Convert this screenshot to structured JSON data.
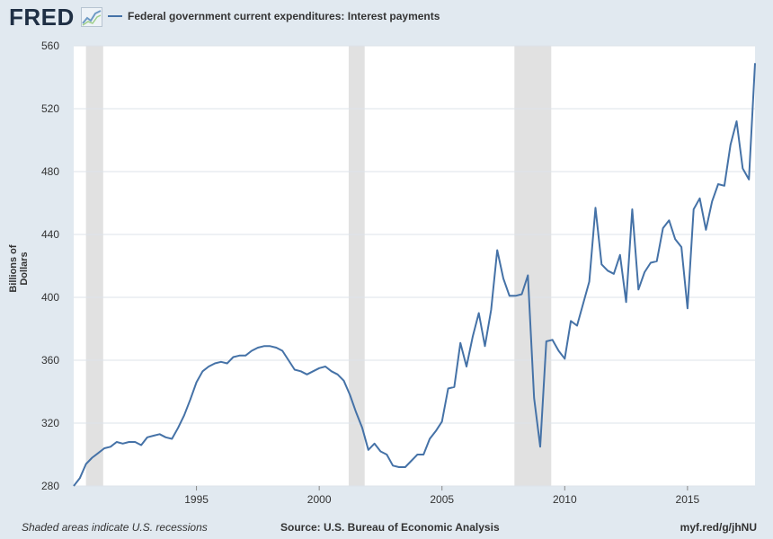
{
  "header": {
    "logo_text": "FRED",
    "logo_icon": "sparkline-chart-icon"
  },
  "footer": {
    "recession_note": "Shaded areas indicate U.S. recessions",
    "source": "Source: U.S. Bureau of Economic Analysis",
    "url": "myf.red/g/jhNU"
  },
  "colors": {
    "background": "#e1e9f0",
    "plot_background": "#ffffff",
    "series_line": "#4572a7",
    "recession_shade": "#e1e1e1",
    "grid": "#dde3ea"
  },
  "chart_data": {
    "type": "line",
    "ylabel": "Billions of Dollars",
    "xlabel": "",
    "ylim": [
      280,
      560
    ],
    "yticks": [
      280,
      320,
      360,
      400,
      440,
      480,
      520,
      560
    ],
    "xlim": [
      1990.0,
      2017.75
    ],
    "xticks": [
      1995,
      2000,
      2005,
      2010,
      2015
    ],
    "grid": "horizontal",
    "legend_position": "top-left",
    "recessions": [
      [
        1990.5,
        1991.2
      ],
      [
        2001.2,
        2001.85
      ],
      [
        2007.95,
        2009.45
      ]
    ],
    "series": [
      {
        "name": "Federal government current expenditures: Interest payments",
        "x": [
          1990.0,
          1990.25,
          1990.5,
          1990.75,
          1991.0,
          1991.25,
          1991.5,
          1991.75,
          1992.0,
          1992.25,
          1992.5,
          1992.75,
          1993.0,
          1993.25,
          1993.5,
          1993.75,
          1994.0,
          1994.25,
          1994.5,
          1994.75,
          1995.0,
          1995.25,
          1995.5,
          1995.75,
          1996.0,
          1996.25,
          1996.5,
          1996.75,
          1997.0,
          1997.25,
          1997.5,
          1997.75,
          1998.0,
          1998.25,
          1998.5,
          1998.75,
          1999.0,
          1999.25,
          1999.5,
          1999.75,
          2000.0,
          2000.25,
          2000.5,
          2000.75,
          2001.0,
          2001.25,
          2001.5,
          2001.75,
          2002.0,
          2002.25,
          2002.5,
          2002.75,
          2003.0,
          2003.25,
          2003.5,
          2003.75,
          2004.0,
          2004.25,
          2004.5,
          2004.75,
          2005.0,
          2005.25,
          2005.5,
          2005.75,
          2006.0,
          2006.25,
          2006.5,
          2006.75,
          2007.0,
          2007.25,
          2007.5,
          2007.75,
          2008.0,
          2008.25,
          2008.5,
          2008.75,
          2009.0,
          2009.25,
          2009.5,
          2009.75,
          2010.0,
          2010.25,
          2010.5,
          2010.75,
          2011.0,
          2011.25,
          2011.5,
          2011.75,
          2012.0,
          2012.25,
          2012.5,
          2012.75,
          2013.0,
          2013.25,
          2013.5,
          2013.75,
          2014.0,
          2014.25,
          2014.5,
          2014.75,
          2015.0,
          2015.25,
          2015.5,
          2015.75,
          2016.0,
          2016.25,
          2016.5,
          2016.75,
          2017.0,
          2017.25,
          2017.5,
          2017.75
        ],
        "values": [
          280,
          285,
          294,
          298,
          301,
          304,
          305,
          308,
          307,
          308,
          308,
          306,
          311,
          312,
          313,
          311,
          310,
          317,
          325,
          335,
          346,
          353,
          356,
          358,
          359,
          358,
          362,
          363,
          363,
          366,
          368,
          369,
          369,
          368,
          366,
          360,
          354,
          353,
          351,
          353,
          355,
          356,
          353,
          351,
          347,
          338,
          327,
          317,
          303,
          307,
          302,
          300,
          293,
          292,
          292,
          296,
          300,
          300,
          310,
          315,
          321,
          342,
          343,
          371,
          356,
          375,
          390,
          369,
          392,
          430,
          412,
          401,
          401,
          402,
          414,
          336,
          305,
          372,
          373,
          366,
          361,
          385,
          382,
          396,
          410,
          457,
          421,
          417,
          415,
          427,
          397,
          456,
          405,
          416,
          422,
          423,
          444,
          449,
          437,
          432,
          393,
          456,
          463,
          443,
          461,
          472,
          471,
          497,
          512,
          482,
          475,
          549
        ]
      }
    ]
  }
}
